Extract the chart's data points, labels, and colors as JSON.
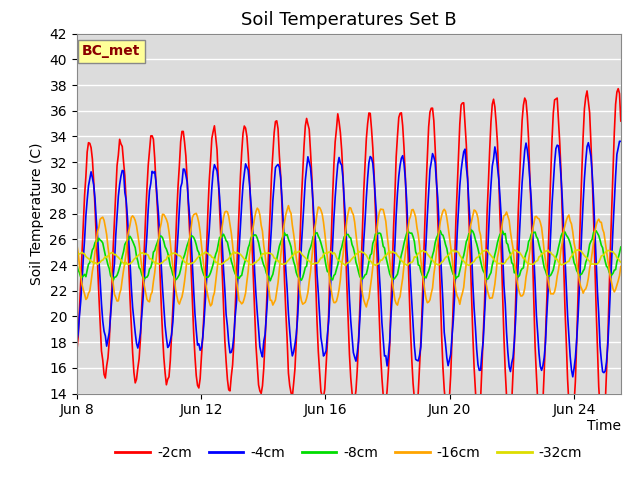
{
  "title": "Soil Temperatures Set B",
  "xlabel": "Time",
  "ylabel": "Soil Temperature (C)",
  "ylim": [
    14,
    42
  ],
  "yticks": [
    14,
    16,
    18,
    20,
    22,
    24,
    26,
    28,
    30,
    32,
    34,
    36,
    38,
    40,
    42
  ],
  "annotation": "BC_met",
  "annotation_color": "#8B0000",
  "annotation_bg": "#FFFF99",
  "plot_bg": "#DCDCDC",
  "grid_color": "#FFFFFF",
  "series": [
    {
      "label": "-2cm",
      "color": "#FF0000",
      "lw": 1.2
    },
    {
      "label": "-4cm",
      "color": "#0000FF",
      "lw": 1.2
    },
    {
      "label": "-8cm",
      "color": "#00DD00",
      "lw": 1.2
    },
    {
      "label": "-16cm",
      "color": "#FFA500",
      "lw": 1.2
    },
    {
      "label": "-32cm",
      "color": "#DDDD00",
      "lw": 1.2
    }
  ],
  "xtick_labels": [
    "Jun 8",
    "Jun 12",
    "Jun 16",
    "Jun 20",
    "Jun 24"
  ],
  "xtick_positions": [
    0,
    4,
    8,
    12,
    16
  ],
  "xlim_days": 17.5,
  "title_fontsize": 13,
  "axis_fontsize": 10,
  "tick_fontsize": 10,
  "legend_fontsize": 10
}
